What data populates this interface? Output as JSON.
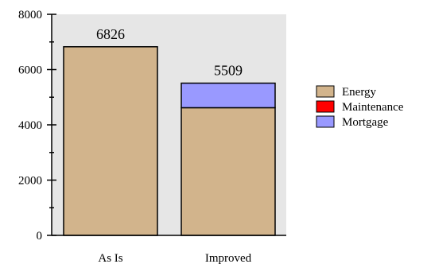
{
  "chart_data": {
    "type": "bar",
    "stacked": true,
    "categories": [
      "As Is",
      "Improved"
    ],
    "series": [
      {
        "name": "Energy",
        "color": "#D2B48C",
        "values": [
          6826,
          4620
        ]
      },
      {
        "name": "Maintenance",
        "color": "#FF0000",
        "values": [
          0,
          0
        ]
      },
      {
        "name": "Mortgage",
        "color": "#9999FF",
        "values": [
          0,
          889
        ]
      }
    ],
    "totals": [
      "6826",
      "5509"
    ],
    "ylim": [
      0,
      8000
    ],
    "yticks": [
      "0",
      "2000",
      "4000",
      "6000",
      "8000"
    ],
    "ytick_values": [
      0,
      2000,
      4000,
      6000,
      8000
    ],
    "title": "",
    "xlabel": "",
    "ylabel": "",
    "legend_position": "right",
    "plot_background": "#E6E6E6",
    "grid": false
  }
}
